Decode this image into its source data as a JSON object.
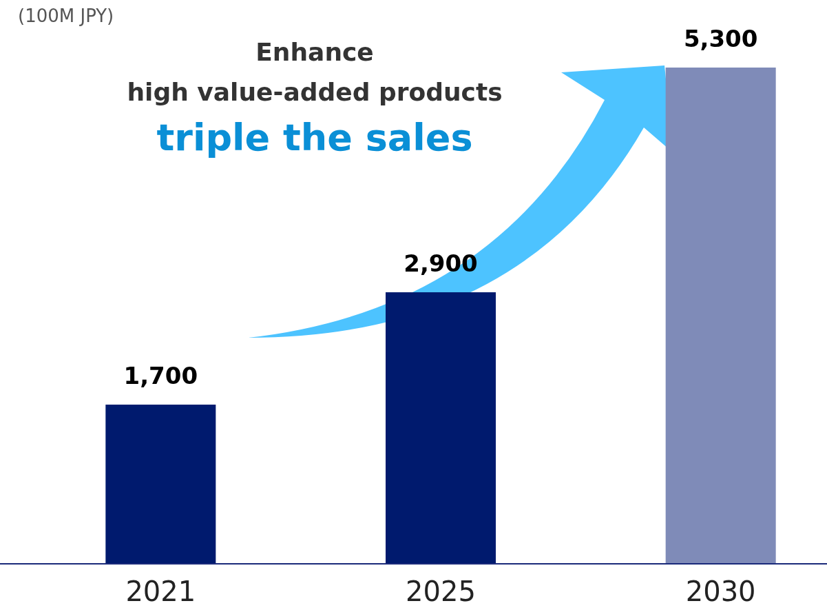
{
  "chart_data": {
    "type": "bar",
    "ylabel": "(100M JPY)",
    "categories": [
      "2021",
      "2025",
      "2030"
    ],
    "values": [
      1700,
      2900,
      5300
    ],
    "colors": [
      "#001a6e",
      "#001a6e",
      "#7f8bb8"
    ],
    "value_labels": [
      "1,700",
      "2,900",
      "5,300"
    ],
    "annotations": [
      "Enhance",
      "high value-added products",
      "triple the sales"
    ]
  }
}
